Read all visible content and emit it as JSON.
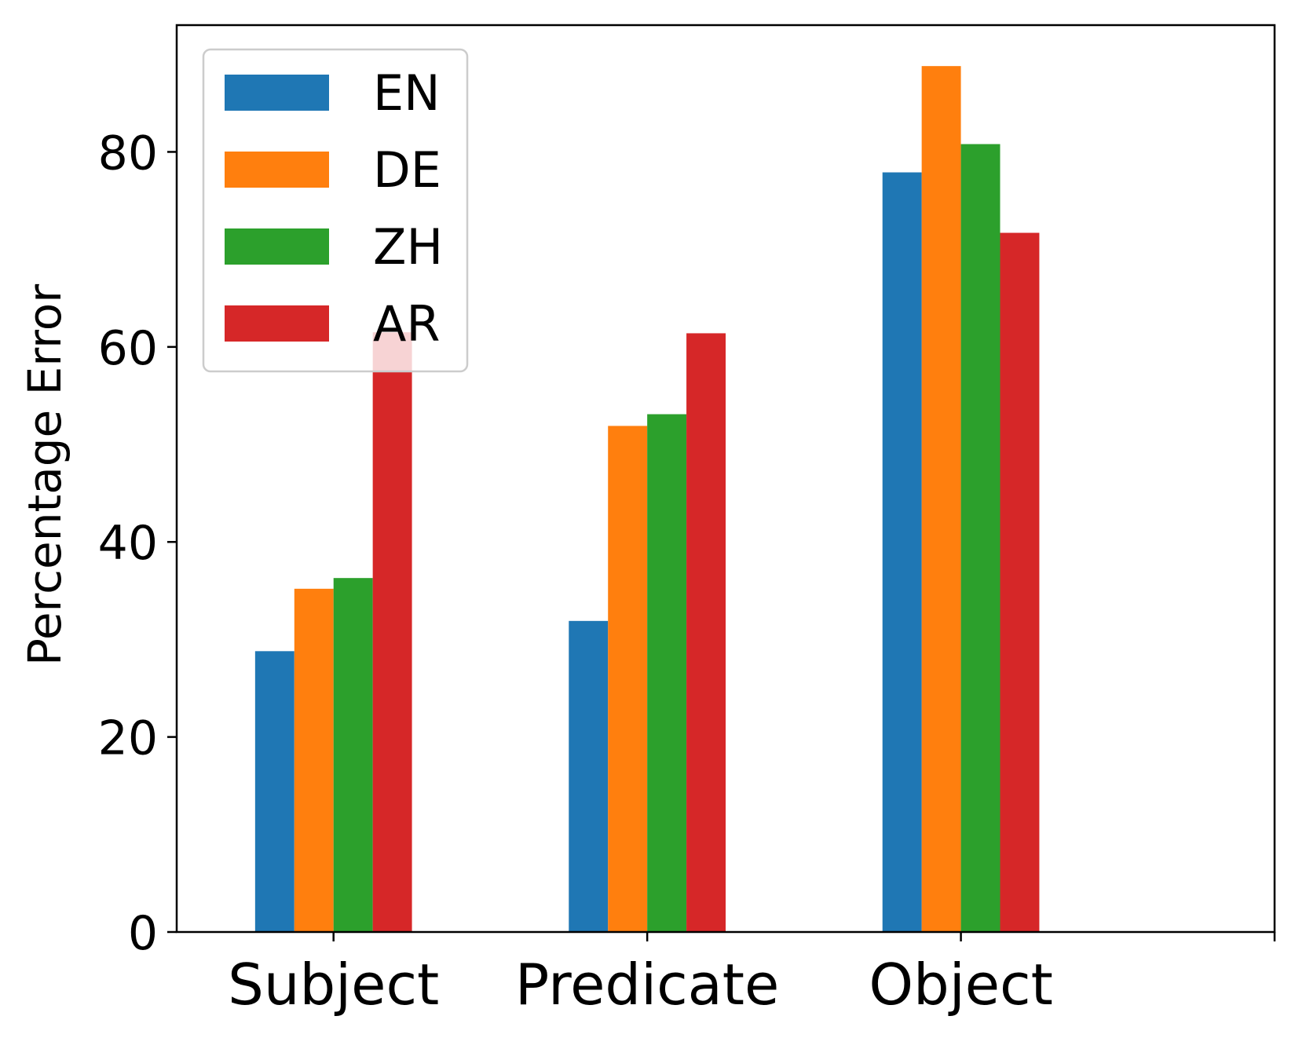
{
  "chart_data": {
    "type": "bar",
    "ylabel": "Percentage Error",
    "xlabel": "",
    "categories": [
      "Subject",
      "Predicate",
      "Object"
    ],
    "series": [
      {
        "name": "EN",
        "color": "#1f77b4",
        "values": [
          28.8,
          31.9,
          77.9
        ]
      },
      {
        "name": "DE",
        "color": "#ff7f0e",
        "values": [
          35.2,
          51.9,
          88.8
        ]
      },
      {
        "name": "ZH",
        "color": "#2ca02c",
        "values": [
          36.3,
          53.1,
          80.8
        ]
      },
      {
        "name": "AR",
        "color": "#d62728",
        "values": [
          61.5,
          61.4,
          71.7
        ]
      }
    ],
    "yticks": [
      "0",
      "20",
      "40",
      "60",
      "80"
    ],
    "ylim": [
      0,
      93
    ],
    "grid": false,
    "legend_position": "top-left"
  }
}
